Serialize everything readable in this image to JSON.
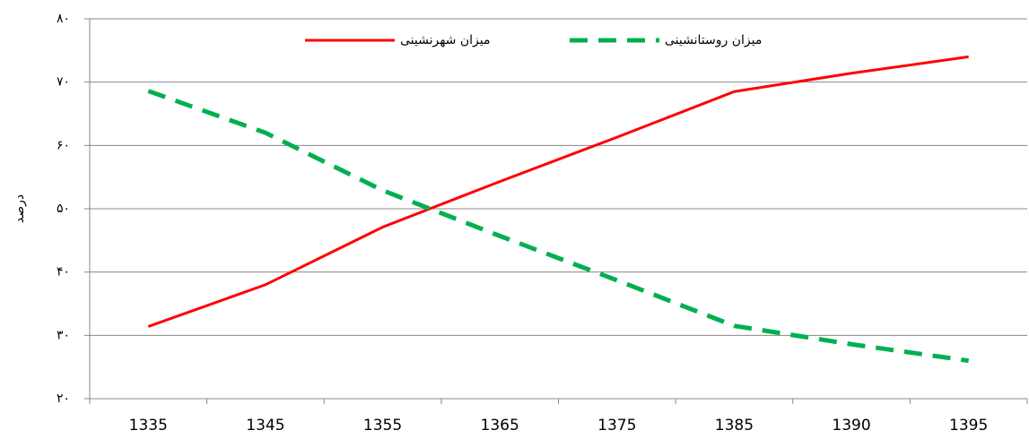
{
  "chart_data": {
    "type": "line",
    "y_label": "درصد",
    "categories": [
      "1335",
      "1345",
      "1355",
      "1365",
      "1375",
      "1385",
      "1390",
      "1395"
    ],
    "series": [
      {
        "name": "میزان شهرنشینی",
        "color": "#ff0000",
        "dashed": false,
        "values": [
          31.4,
          38.0,
          47.1,
          54.3,
          61.3,
          68.5,
          71.4,
          74.0
        ]
      },
      {
        "name": "میزان روستانشینی",
        "color": "#00b050",
        "dashed": true,
        "values": [
          68.6,
          62.0,
          52.9,
          45.7,
          38.7,
          31.5,
          28.6,
          26.0
        ]
      }
    ],
    "ylim": [
      20,
      80
    ],
    "yticks": [
      {
        "value": 20,
        "label": "۲۰"
      },
      {
        "value": 30,
        "label": "۳۰"
      },
      {
        "value": 40,
        "label": "۴۰"
      },
      {
        "value": 50,
        "label": "۵۰"
      },
      {
        "value": 60,
        "label": "۶۰"
      },
      {
        "value": 70,
        "label": "۷۰"
      },
      {
        "value": 80,
        "label": "۸۰"
      }
    ],
    "grid": true,
    "legend": "top"
  }
}
